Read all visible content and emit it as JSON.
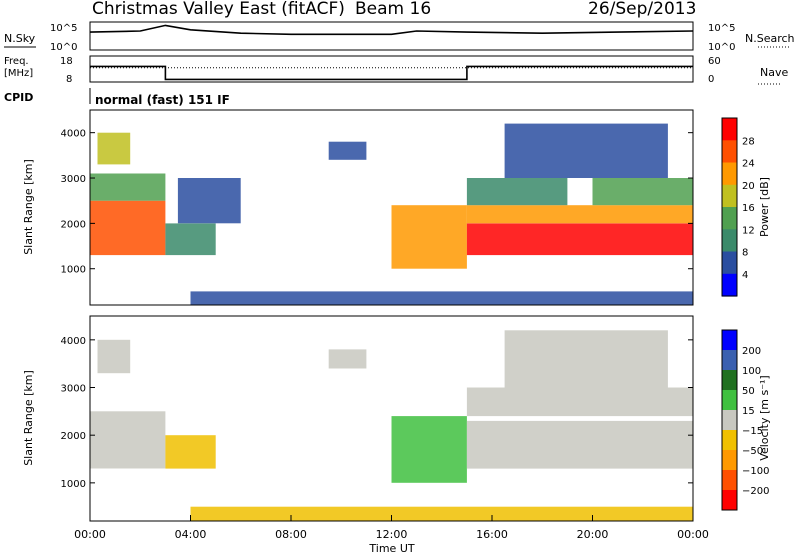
{
  "header": {
    "title": "Christmas Valley East (fitACF)",
    "beam": "Beam 16",
    "date": "26/Sep/2013"
  },
  "panels": {
    "nsky_label": "N.Sky",
    "nsearch_label": "N.Search",
    "freq_label_1": "Freq.",
    "freq_label_2": "[MHz]",
    "nave_label": "Nave",
    "cpid_label": "CPID",
    "cpid_text": "normal (fast) 151 IF"
  },
  "chart_data": [
    {
      "type": "line",
      "name": "noise",
      "left_ticks": [
        "10^5",
        "10^0"
      ],
      "right_ticks": [
        "10^5",
        "10^0"
      ],
      "x": [
        0,
        2,
        3,
        4,
        6,
        8,
        10,
        12,
        13,
        15,
        18,
        21,
        24
      ],
      "y_sky_log": [
        3.2,
        3.4,
        4.4,
        3.6,
        3.0,
        2.8,
        2.8,
        2.8,
        3.4,
        3.2,
        3.0,
        3.2,
        3.4
      ]
    },
    {
      "type": "line",
      "name": "frequency",
      "left_ticks": [
        "18",
        "8"
      ],
      "right_ticks": [
        "60",
        "0"
      ],
      "x": [
        0,
        3.0,
        3.0,
        15.0,
        15.0,
        24
      ],
      "freq_mhz": [
        14,
        14,
        9,
        9,
        14,
        14
      ],
      "nave": [
        33,
        33,
        33,
        33,
        33,
        33
      ]
    },
    {
      "type": "heatmap",
      "name": "power",
      "xlabel": "",
      "ylabel": "Slant Range [km]",
      "xlim": [
        0,
        24
      ],
      "ylim": [
        200,
        4500
      ],
      "yticks": [
        "1000",
        "2000",
        "3000",
        "4000"
      ],
      "colorbar_label": "Power [dB]",
      "colorbar_ticks": [
        "4",
        "8",
        "12",
        "16",
        "20",
        "24",
        "28"
      ],
      "colors": [
        "#0000ff",
        "#2a4ea0",
        "#3a8a6a",
        "#50a050",
        "#c0c020",
        "#ff9900",
        "#ff5000",
        "#ff0000"
      ],
      "regions": [
        {
          "x0": 0.0,
          "x1": 3.0,
          "y0": 1300,
          "y1": 2500,
          "level": 6
        },
        {
          "x0": 0.0,
          "x1": 3.0,
          "y0": 2500,
          "y1": 3100,
          "level": 3
        },
        {
          "x0": 0.3,
          "x1": 1.6,
          "y0": 3300,
          "y1": 4000,
          "level": 4
        },
        {
          "x0": 3.0,
          "x1": 5.0,
          "y0": 1300,
          "y1": 2000,
          "level": 2
        },
        {
          "x0": 3.5,
          "x1": 6.0,
          "y0": 2000,
          "y1": 3000,
          "level": 1
        },
        {
          "x0": 9.5,
          "x1": 11.0,
          "y0": 3400,
          "y1": 3800,
          "level": 1
        },
        {
          "x0": 12.0,
          "x1": 15.0,
          "y0": 1000,
          "y1": 2400,
          "level": 5
        },
        {
          "x0": 15.0,
          "x1": 24.0,
          "y0": 1300,
          "y1": 2000,
          "level": 7
        },
        {
          "x0": 15.0,
          "x1": 24.0,
          "y0": 2000,
          "y1": 2400,
          "level": 5
        },
        {
          "x0": 15.0,
          "x1": 19.0,
          "y0": 2400,
          "y1": 3000,
          "level": 2
        },
        {
          "x0": 20.0,
          "x1": 24.0,
          "y0": 2400,
          "y1": 3000,
          "level": 3
        },
        {
          "x0": 16.5,
          "x1": 23.0,
          "y0": 3000,
          "y1": 4200,
          "level": 1
        },
        {
          "x0": 4.0,
          "x1": 24.0,
          "y0": 200,
          "y1": 500,
          "level": 1
        }
      ]
    },
    {
      "type": "heatmap",
      "name": "velocity",
      "xlabel": "Time UT",
      "ylabel": "Slant Range [km]",
      "xlim": [
        0,
        24
      ],
      "ylim": [
        200,
        4500
      ],
      "xticks": [
        "00:00",
        "04:00",
        "08:00",
        "12:00",
        "16:00",
        "20:00",
        "00:00"
      ],
      "yticks": [
        "1000",
        "2000",
        "3000",
        "4000"
      ],
      "colorbar_label": "Velocity [m s⁻¹]",
      "colorbar_ticks": [
        "200",
        "100",
        "50",
        "15",
        "−15",
        "−50",
        "−100",
        "−200"
      ],
      "colors": [
        "#ff0000",
        "#ff5000",
        "#ff9900",
        "#f0c000",
        "#c8c8c0",
        "#40c040",
        "#207020",
        "#3a60b0",
        "#0000ff"
      ],
      "regions": [
        {
          "x0": 0.0,
          "x1": 3.0,
          "y0": 1300,
          "y1": 2500,
          "level": 4
        },
        {
          "x0": 0.3,
          "x1": 1.6,
          "y0": 3300,
          "y1": 4000,
          "level": 4
        },
        {
          "x0": 3.0,
          "x1": 5.0,
          "y0": 1300,
          "y1": 2000,
          "level": 3
        },
        {
          "x0": 9.5,
          "x1": 11.0,
          "y0": 3400,
          "y1": 3800,
          "level": 4
        },
        {
          "x0": 12.0,
          "x1": 15.0,
          "y0": 1000,
          "y1": 2400,
          "level": 5
        },
        {
          "x0": 15.0,
          "x1": 24.0,
          "y0": 1300,
          "y1": 2300,
          "level": 4
        },
        {
          "x0": 15.0,
          "x1": 24.0,
          "y0": 2400,
          "y1": 3000,
          "level": 4
        },
        {
          "x0": 16.5,
          "x1": 23.0,
          "y0": 3000,
          "y1": 4200,
          "level": 4
        },
        {
          "x0": 4.0,
          "x1": 24.0,
          "y0": 200,
          "y1": 500,
          "level": 3
        }
      ]
    }
  ]
}
